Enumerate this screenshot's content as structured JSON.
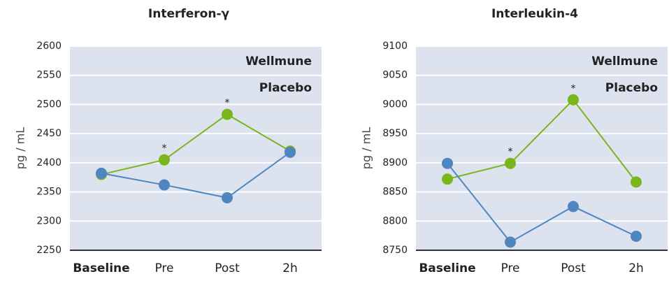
{
  "chart_data": [
    {
      "type": "line",
      "title": "Interferon-γ",
      "y_label": "pg / mL",
      "categories": [
        "Baseline",
        "Pre",
        "Post",
        "2h"
      ],
      "series": [
        {
          "name": "Wellmune",
          "color": "#7ab51d",
          "values": [
            2380,
            2405,
            2483,
            2420
          ]
        },
        {
          "name": "Placebo",
          "color": "#4f86c0",
          "values": [
            2382,
            2362,
            2340,
            2418
          ]
        }
      ],
      "annotations": [
        {
          "text": "*",
          "category": "Pre"
        },
        {
          "text": "*",
          "category": "Post"
        }
      ],
      "ylim": [
        2250,
        2600
      ],
      "yticks": [
        2250,
        2300,
        2350,
        2400,
        2450,
        2500,
        2550,
        2600
      ],
      "grid": true,
      "legend": "top-right"
    },
    {
      "type": "line",
      "title": "Interleukin-4",
      "y_label": "pg / mL",
      "categories": [
        "Baseline",
        "Pre",
        "Post",
        "2h"
      ],
      "series": [
        {
          "name": "Wellmune",
          "color": "#7ab51d",
          "values": [
            8872,
            8899,
            9008,
            8867
          ]
        },
        {
          "name": "Placebo",
          "color": "#4f86c0",
          "values": [
            8899,
            8764,
            8825,
            8774
          ]
        }
      ],
      "annotations": [
        {
          "text": "*",
          "category": "Pre"
        },
        {
          "text": "*",
          "category": "Post"
        }
      ],
      "ylim": [
        8750,
        9100
      ],
      "yticks": [
        8750,
        8800,
        8850,
        8900,
        8950,
        9000,
        9050,
        9100
      ],
      "grid": true,
      "legend": "top-right"
    }
  ]
}
